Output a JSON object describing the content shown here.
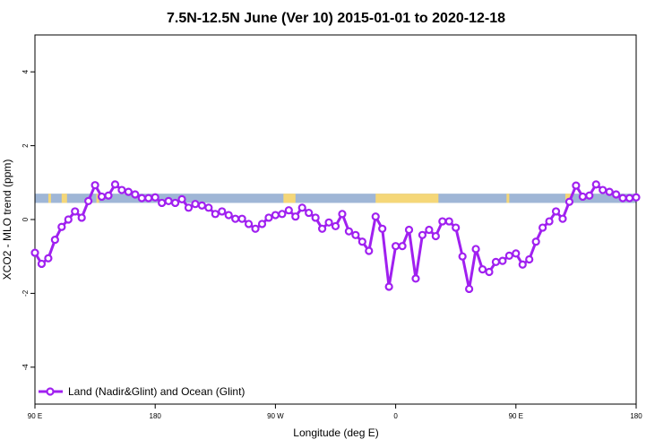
{
  "chart_data": {
    "type": "line",
    "title": "7.5N-12.5N June (Ver 10)   2015-01-01 to 2020-12-18",
    "xlabel": "Longitude (deg E)",
    "ylabel": "XCO2 - MLO trend (ppm)",
    "xlim": [
      90,
      540
    ],
    "ylim": [
      -5,
      5
    ],
    "x_ticks": [
      {
        "value": 90,
        "label": "90 E"
      },
      {
        "value": 180,
        "label": "180"
      },
      {
        "value": 270,
        "label": "90 W"
      },
      {
        "value": 360,
        "label": "0"
      },
      {
        "value": 450,
        "label": "90 E"
      },
      {
        "value": 540,
        "label": "180"
      }
    ],
    "y_ticks": [
      {
        "value": -4,
        "label": "-4"
      },
      {
        "value": -2,
        "label": "-2"
      },
      {
        "value": 0,
        "label": "0"
      },
      {
        "value": 2,
        "label": "2"
      },
      {
        "value": 4,
        "label": "4"
      }
    ],
    "land_ocean_band": {
      "y_range": [
        0.45,
        0.7
      ],
      "ocean_color": "#9fb6d6",
      "land_color": "#f5d778",
      "land_segments": [
        [
          100,
          102
        ],
        [
          110,
          114
        ],
        [
          136,
          138
        ],
        [
          276,
          285
        ],
        [
          345,
          392
        ],
        [
          443,
          445
        ],
        [
          487,
          491
        ]
      ]
    },
    "series": [
      {
        "name": "Land (Nadir&Glint) and Ocean (Glint)",
        "color": "#a020f0",
        "x": [
          90,
          95,
          100,
          105,
          110,
          115,
          120,
          125,
          130,
          135,
          140,
          145,
          150,
          155,
          160,
          165,
          170,
          175,
          180,
          185,
          190,
          195,
          200,
          205,
          210,
          215,
          220,
          225,
          230,
          235,
          240,
          245,
          250,
          255,
          260,
          265,
          270,
          275,
          280,
          285,
          290,
          295,
          300,
          305,
          310,
          315,
          320,
          325,
          330,
          335,
          340,
          345,
          350,
          355,
          360,
          365,
          370,
          375,
          380,
          385,
          390,
          395,
          400,
          405,
          410,
          415,
          420,
          425,
          430,
          435,
          440,
          445,
          450,
          455,
          460,
          465,
          470,
          475,
          480,
          485,
          490,
          495,
          500,
          505,
          510,
          515,
          520,
          525,
          530,
          535,
          540
        ],
        "y": [
          -0.9,
          -1.2,
          -1.05,
          -0.55,
          -0.2,
          0.0,
          0.22,
          0.05,
          0.5,
          0.93,
          0.62,
          0.65,
          0.95,
          0.8,
          0.75,
          0.68,
          0.58,
          0.58,
          0.6,
          0.45,
          0.5,
          0.45,
          0.55,
          0.32,
          0.42,
          0.38,
          0.32,
          0.15,
          0.22,
          0.12,
          0.02,
          0.02,
          -0.12,
          -0.25,
          -0.12,
          0.05,
          0.12,
          0.15,
          0.25,
          0.08,
          0.32,
          0.18,
          0.05,
          -0.25,
          -0.08,
          -0.18,
          0.15,
          -0.32,
          -0.42,
          -0.6,
          -0.85,
          0.08,
          -0.25,
          -1.82,
          -0.72,
          -0.72,
          -0.28,
          -1.6,
          -0.42,
          -0.28,
          -0.45,
          -0.05,
          -0.05,
          -0.22,
          -1.0,
          -1.88,
          -0.8,
          -1.35,
          -1.42,
          -1.15,
          -1.12,
          -0.98,
          -0.92,
          -1.22,
          -1.08,
          -0.6,
          -0.22,
          -0.05,
          0.22,
          0.02,
          0.48,
          0.92,
          0.62,
          0.65,
          0.95,
          0.8,
          0.75,
          0.68,
          0.58,
          0.58,
          0.6
        ]
      }
    ],
    "legend_position": "bottom-left",
    "grid": false
  }
}
